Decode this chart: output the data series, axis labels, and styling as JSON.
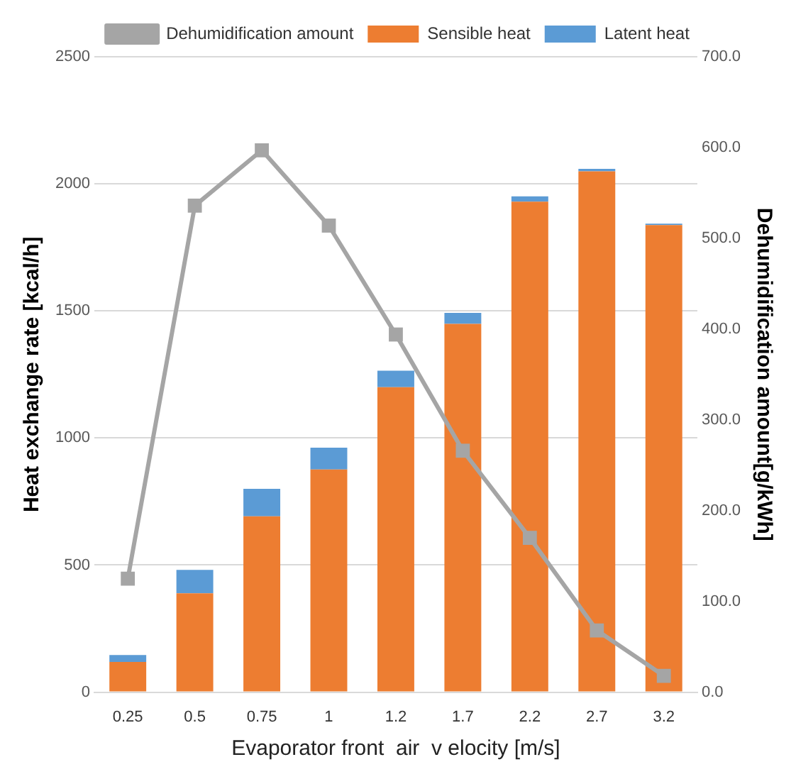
{
  "chart_data": {
    "type": "bar",
    "stacked": true,
    "xlabel": "Evaporator front  air  v elocity [m/s]",
    "ylabel": "Heat exchange rate [kcal/h]",
    "y2label": "Dehumidification amount[g/kWh]",
    "categories": [
      "0.25",
      "0.5",
      "0.75",
      "1",
      "1.2",
      "1.7",
      "2.2",
      "2.7",
      "3.2"
    ],
    "series": [
      {
        "name": "Sensible heat",
        "color": "#ed7d31",
        "values": [
          119,
          389,
          692,
          876,
          1200,
          1449,
          1930,
          2049,
          1838
        ]
      },
      {
        "name": "Latent heat",
        "color": "#5b9bd5",
        "values": [
          27,
          92,
          108,
          86,
          65,
          43,
          21,
          10,
          5
        ]
      },
      {
        "name": "Dehumidification amount",
        "type": "line",
        "axis": "y2",
        "color": "#a5a5a5",
        "marker": "square",
        "values": [
          125,
          536,
          597,
          514,
          394,
          266,
          170,
          68,
          18
        ]
      }
    ],
    "ylim": [
      0,
      2500
    ],
    "yticks": [
      0,
      500,
      1000,
      1500,
      2000,
      2500
    ],
    "y2lim": [
      0,
      700
    ],
    "y2ticks": [
      {
        "value": 0,
        "label": "0.0"
      },
      {
        "value": 100,
        "label": "100.0"
      },
      {
        "value": 200,
        "label": "200.0"
      },
      {
        "value": 300,
        "label": "300.0"
      },
      {
        "value": 400,
        "label": "400.0"
      },
      {
        "value": 500,
        "label": "500.0"
      },
      {
        "value": 600,
        "label": "600.0"
      },
      {
        "value": 700,
        "label": "700.0"
      }
    ],
    "grid": "y",
    "legend": "top"
  }
}
